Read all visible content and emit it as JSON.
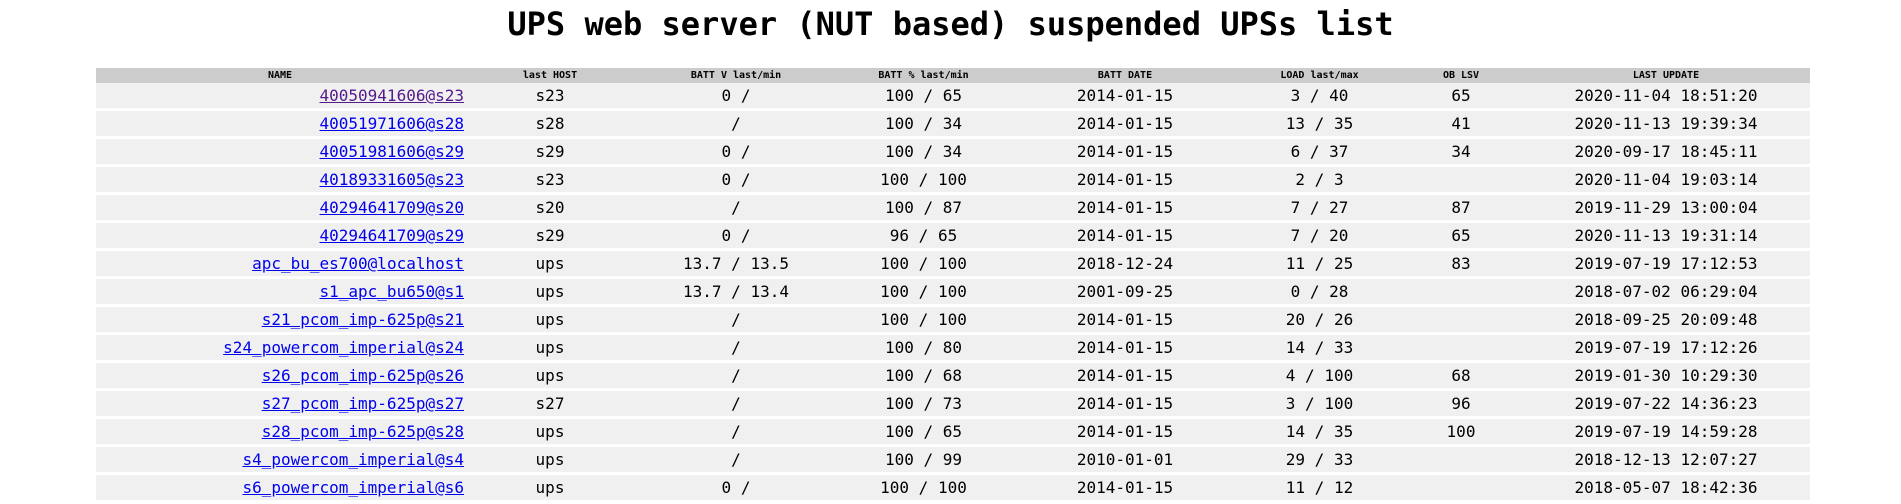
{
  "page": {
    "title": "UPS web server (NUT based) suspended UPSs list"
  },
  "table": {
    "headers": [
      "NAME",
      "last HOST",
      "BATT V last/min",
      "BATT % last/min",
      "BATT DATE",
      "LOAD last/max",
      "OB LSV",
      "LAST UPDATE"
    ],
    "rows": [
      {
        "name": "40050941606@s23",
        "host": "s23",
        "batt_v": "0 /",
        "batt_pct": "100 / 65",
        "batt_date": "2014-01-15",
        "load": "3 / 40",
        "ob_lsv": "65",
        "last_update": "2020-11-04 18:51:20",
        "visited": true
      },
      {
        "name": "40051971606@s28",
        "host": "s28",
        "batt_v": "/",
        "batt_pct": "100 / 34",
        "batt_date": "2014-01-15",
        "load": "13 / 35",
        "ob_lsv": "41",
        "last_update": "2020-11-13 19:39:34",
        "visited": false
      },
      {
        "name": "40051981606@s29",
        "host": "s29",
        "batt_v": "0 /",
        "batt_pct": "100 / 34",
        "batt_date": "2014-01-15",
        "load": "6 / 37",
        "ob_lsv": "34",
        "last_update": "2020-09-17 18:45:11",
        "visited": false
      },
      {
        "name": "40189331605@s23",
        "host": "s23",
        "batt_v": "0 /",
        "batt_pct": "100 / 100",
        "batt_date": "2014-01-15",
        "load": "2 / 3",
        "ob_lsv": "",
        "last_update": "2020-11-04 19:03:14",
        "visited": false
      },
      {
        "name": "40294641709@s20",
        "host": "s20",
        "batt_v": "/",
        "batt_pct": "100 / 87",
        "batt_date": "2014-01-15",
        "load": "7 / 27",
        "ob_lsv": "87",
        "last_update": "2019-11-29 13:00:04",
        "visited": false
      },
      {
        "name": "40294641709@s29",
        "host": "s29",
        "batt_v": "0 /",
        "batt_pct": "96 / 65",
        "batt_date": "2014-01-15",
        "load": "7 / 20",
        "ob_lsv": "65",
        "last_update": "2020-11-13 19:31:14",
        "visited": false
      },
      {
        "name": "apc_bu_es700@localhost",
        "host": "ups",
        "batt_v": "13.7 / 13.5",
        "batt_pct": "100 / 100",
        "batt_date": "2018-12-24",
        "load": "11 / 25",
        "ob_lsv": "83",
        "last_update": "2019-07-19 17:12:53",
        "visited": false
      },
      {
        "name": "s1_apc_bu650@s1",
        "host": "ups",
        "batt_v": "13.7 / 13.4",
        "batt_pct": "100 / 100",
        "batt_date": "2001-09-25",
        "load": "0 / 28",
        "ob_lsv": "",
        "last_update": "2018-07-02 06:29:04",
        "visited": false
      },
      {
        "name": "s21_pcom_imp-625p@s21",
        "host": "ups",
        "batt_v": "/",
        "batt_pct": "100 / 100",
        "batt_date": "2014-01-15",
        "load": "20 / 26",
        "ob_lsv": "",
        "last_update": "2018-09-25 20:09:48",
        "visited": false
      },
      {
        "name": "s24_powercom_imperial@s24",
        "host": "ups",
        "batt_v": "/",
        "batt_pct": "100 / 80",
        "batt_date": "2014-01-15",
        "load": "14 / 33",
        "ob_lsv": "",
        "last_update": "2019-07-19 17:12:26",
        "visited": false
      },
      {
        "name": "s26_pcom_imp-625p@s26",
        "host": "ups",
        "batt_v": "/",
        "batt_pct": "100 / 68",
        "batt_date": "2014-01-15",
        "load": "4 / 100",
        "ob_lsv": "68",
        "last_update": "2019-01-30 10:29:30",
        "visited": false
      },
      {
        "name": "s27_pcom_imp-625p@s27",
        "host": "s27",
        "batt_v": "/",
        "batt_pct": "100 / 73",
        "batt_date": "2014-01-15",
        "load": "3 / 100",
        "ob_lsv": "96",
        "last_update": "2019-07-22 14:36:23",
        "visited": false
      },
      {
        "name": "s28_pcom_imp-625p@s28",
        "host": "ups",
        "batt_v": "/",
        "batt_pct": "100 / 65",
        "batt_date": "2014-01-15",
        "load": "14 / 35",
        "ob_lsv": "100",
        "last_update": "2019-07-19 14:59:28",
        "visited": false
      },
      {
        "name": "s4_powercom_imperial@s4",
        "host": "ups",
        "batt_v": "/",
        "batt_pct": "100 / 99",
        "batt_date": "2010-01-01",
        "load": "29 / 33",
        "ob_lsv": "",
        "last_update": "2018-12-13 12:07:27",
        "visited": false
      },
      {
        "name": "s6_powercom_imperial@s6",
        "host": "ups",
        "batt_v": "0 /",
        "batt_pct": "100 / 100",
        "batt_date": "2014-01-15",
        "load": "11 / 12",
        "ob_lsv": "",
        "last_update": "2018-05-07 18:42:36",
        "visited": false
      }
    ]
  },
  "colors": {
    "header_bg": "#cccccc",
    "row_bg": "#f0f0f0",
    "link": "#0000ee",
    "link_visited": "#551a8b"
  }
}
